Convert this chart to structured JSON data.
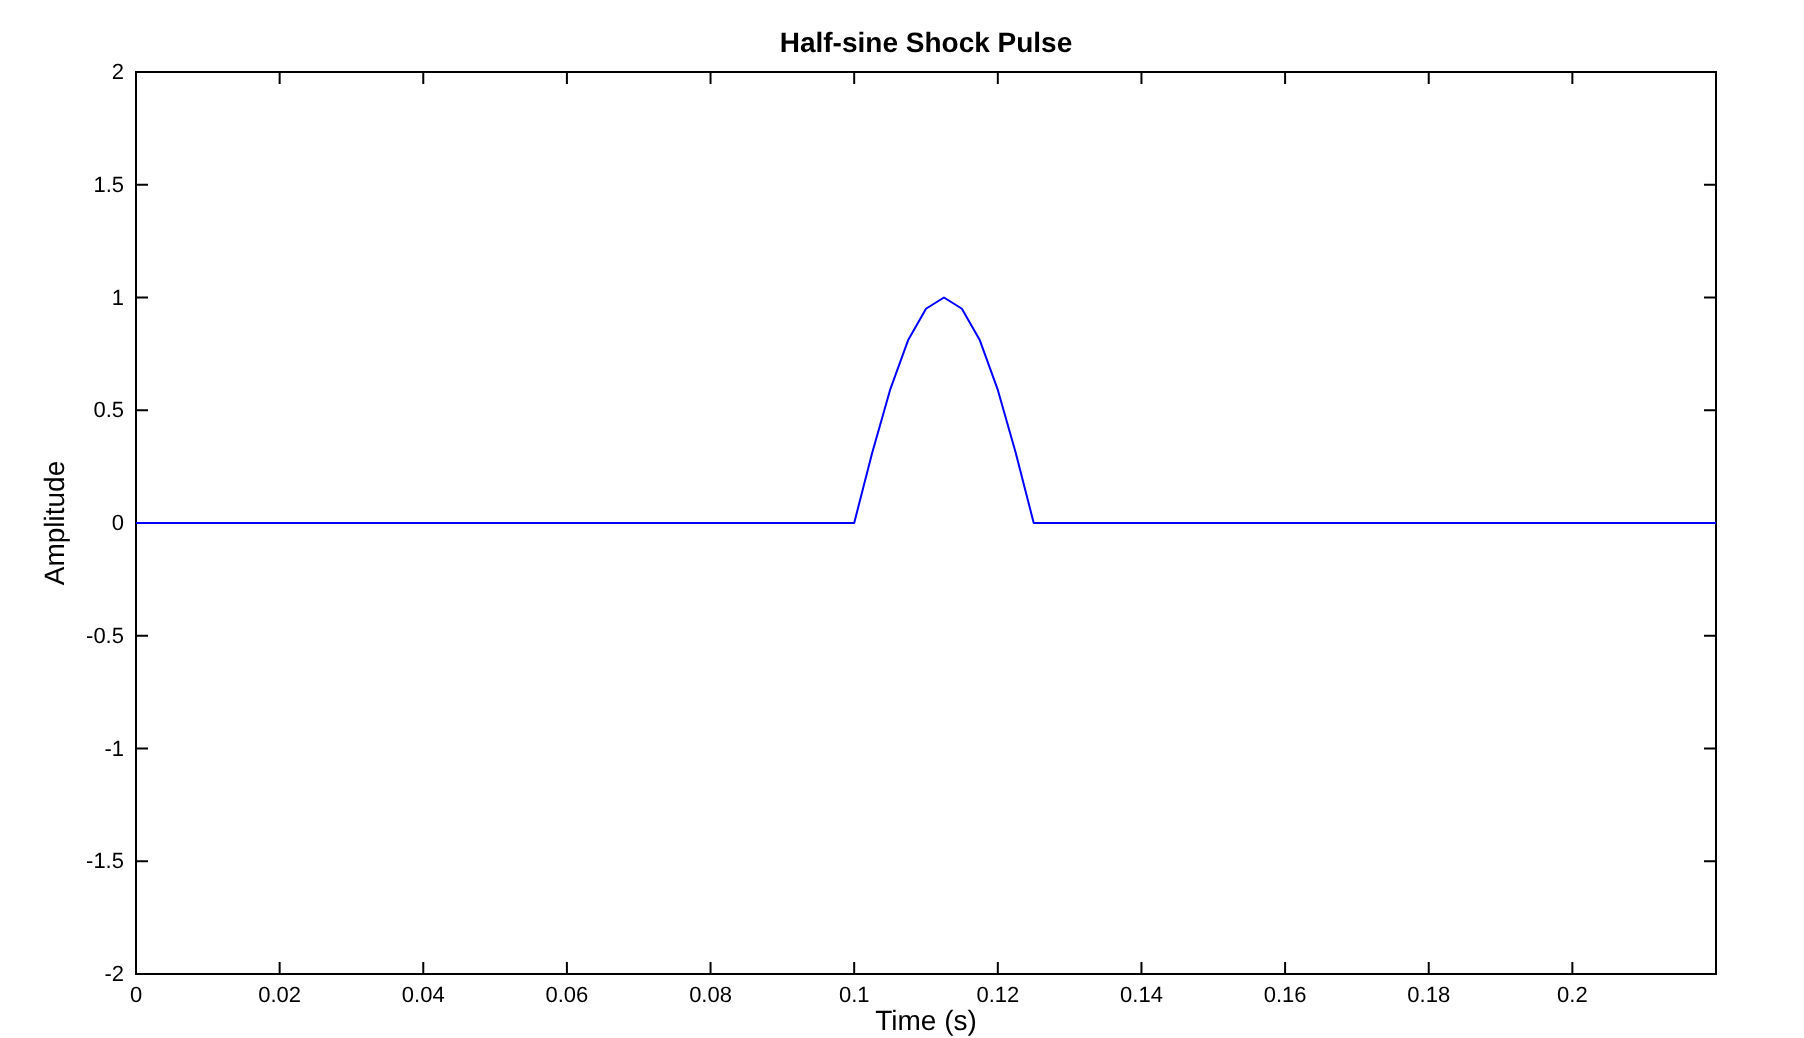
{
  "chart_data": {
    "type": "line",
    "title": "Half-sine Shock Pulse",
    "xlabel": "Time (s)",
    "ylabel": "Amplitude",
    "x": [
      0,
      0.1,
      0.1025,
      0.105,
      0.1075,
      0.11,
      0.1125,
      0.115,
      0.1175,
      0.12,
      0.1225,
      0.125,
      0.22
    ],
    "series": [
      {
        "color": "#0000ff",
        "values": [
          0,
          0,
          0.31,
          0.59,
          0.81,
          0.95,
          1,
          0.95,
          0.81,
          0.59,
          0.31,
          0,
          0
        ]
      }
    ],
    "xlim": [
      0,
      0.22
    ],
    "xticks": [
      0,
      0.02,
      0.04,
      0.06,
      0.08,
      0.1,
      0.12,
      0.14,
      0.16,
      0.18,
      0.2
    ],
    "ylim": [
      -2,
      2
    ],
    "yticks": [
      -2,
      -1.5,
      -1,
      -0.5,
      0,
      0.5,
      1,
      1.5,
      2
    ],
    "grid": false,
    "marker": "none",
    "line_style": "solid"
  }
}
